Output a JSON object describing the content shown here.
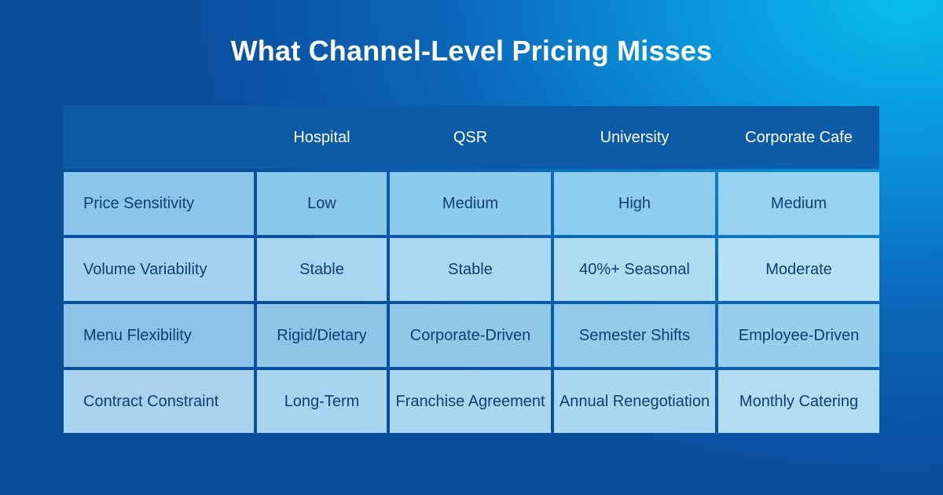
{
  "title": "What Channel-Level Pricing Misses",
  "chart_data": {
    "type": "table",
    "columns": [
      "",
      "Hospital",
      "QSR",
      "University",
      "Corporate Cafe"
    ],
    "rows": [
      {
        "label": "Price Sensitivity",
        "cells": [
          "Low",
          "Medium",
          "High",
          "Medium"
        ]
      },
      {
        "label": "Volume Variability",
        "cells": [
          "Stable",
          "Stable",
          "40%+ Seasonal",
          "Moderate"
        ]
      },
      {
        "label": "Menu Flexibility",
        "cells": [
          "Rigid/Dietary",
          "Corporate-Driven",
          "Semester Shifts",
          "Employee-Driven"
        ]
      },
      {
        "label": "Contract Constraint",
        "cells": [
          "Long-Term",
          "Franchise Agreement",
          "Annual Renegotiation",
          "Monthly Catering"
        ]
      }
    ]
  },
  "colors": {
    "header_band": "#0b5ba6",
    "cell_text": "#0d3f73",
    "row_1": [
      "#89c6e9",
      "#8ac8ea",
      "#8ccbeb",
      "#8ecded",
      "#95d3f0"
    ],
    "row_2": [
      "#a4d3ef",
      "#a8d6f0",
      "#acd9f1",
      "#b0dcf2",
      "#b6e0f4"
    ],
    "row_3": [
      "#8cc2e6",
      "#8ec5e7",
      "#90c8e8",
      "#92cbea",
      "#96cfec"
    ],
    "row_4": [
      "#a8d2ee",
      "#a9d4ef",
      "#aad6f0",
      "#abd8f1",
      "#b1dcf2"
    ]
  }
}
